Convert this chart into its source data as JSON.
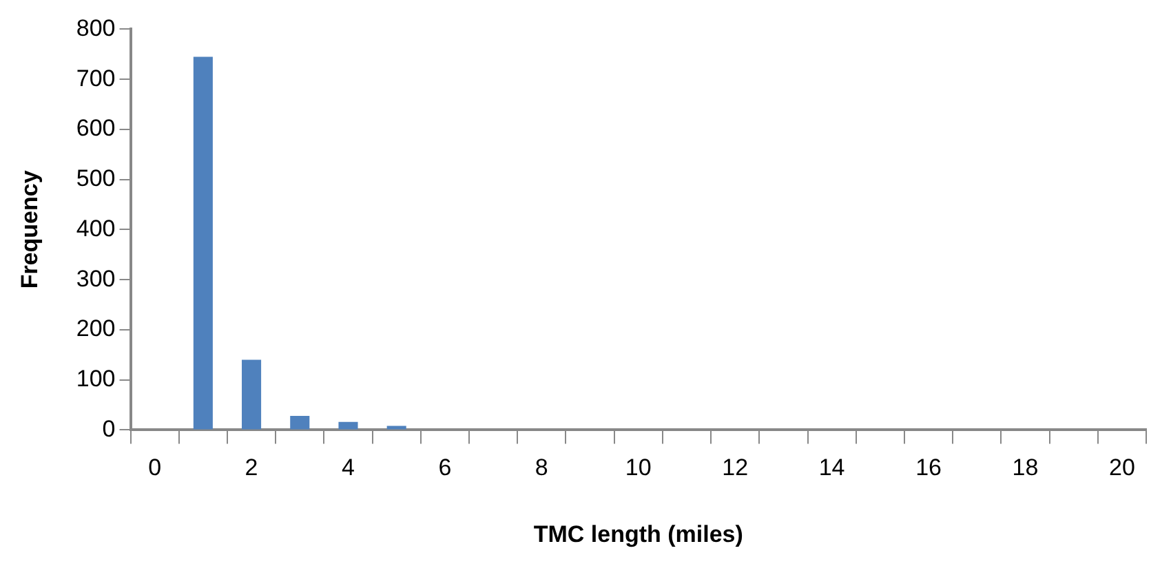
{
  "chart_data": {
    "type": "bar",
    "xlabel": "TMC length (miles)",
    "ylabel": "Frequency",
    "categories": [
      "0",
      null,
      "2",
      null,
      "4",
      null,
      "6",
      null,
      "8",
      null,
      "10",
      null,
      "12",
      null,
      "14",
      null,
      "16",
      null,
      "18",
      null,
      "20"
    ],
    "values": [
      0,
      745,
      140,
      28,
      16,
      8,
      0,
      0,
      0,
      0,
      0,
      0,
      0,
      0,
      0,
      0,
      0,
      0,
      0,
      0,
      0
    ],
    "color": "#4f81bd",
    "ylim": [
      0,
      800
    ],
    "yticks": [
      0,
      100,
      200,
      300,
      400,
      500,
      600,
      700,
      800
    ],
    "grid": false,
    "legend": false
  }
}
